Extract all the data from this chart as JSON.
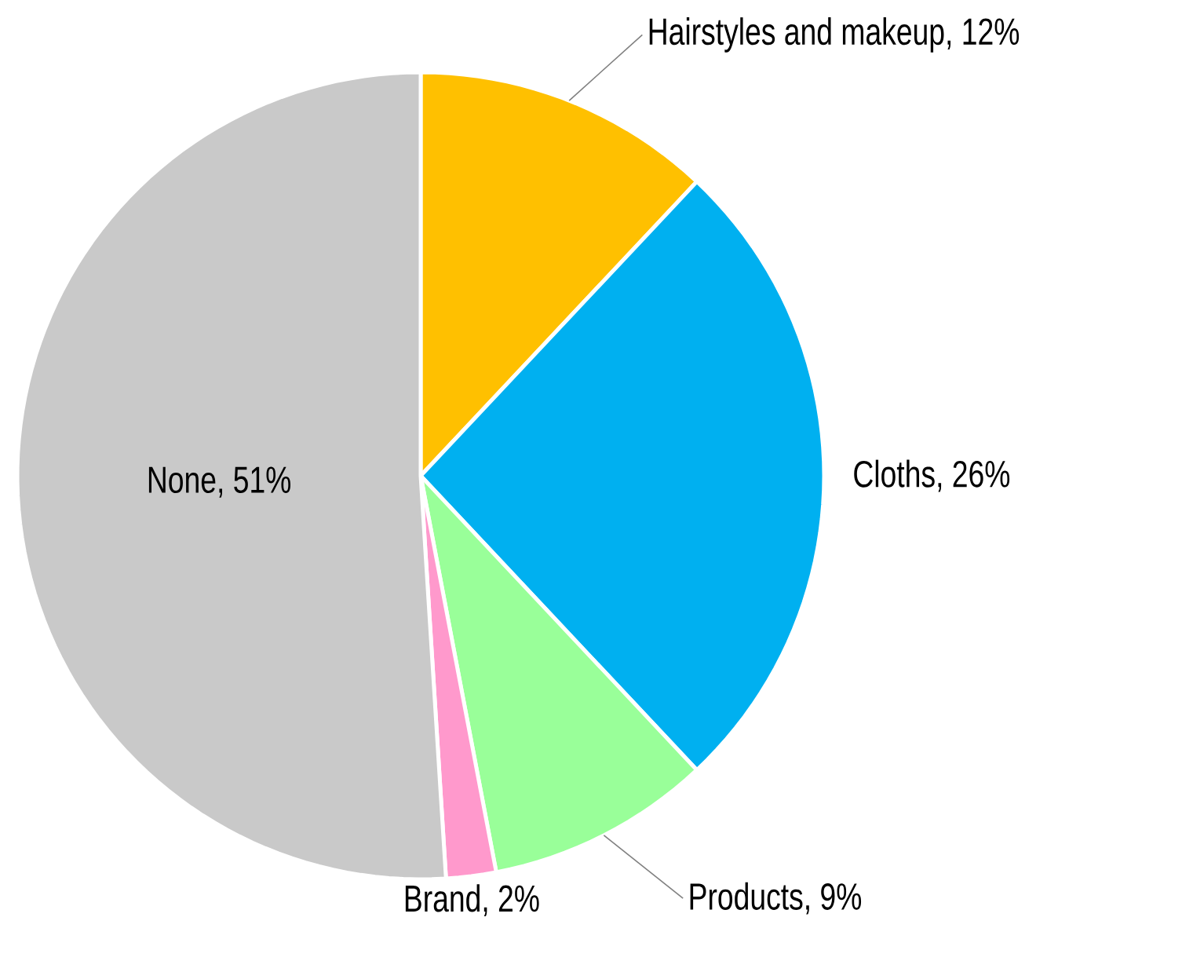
{
  "chart_data": {
    "type": "pie",
    "categories": [
      "Hairstyles and makeup, 12%",
      "Cloths, 26%",
      "Products, 9%",
      "Brand, 2%",
      "None, 51%"
    ],
    "values": [
      12,
      26,
      9,
      2,
      51
    ],
    "colors": [
      "#ffc000",
      "#00b0f0",
      "#99ff99",
      "#ff99cc",
      "#c9c9c9"
    ]
  }
}
